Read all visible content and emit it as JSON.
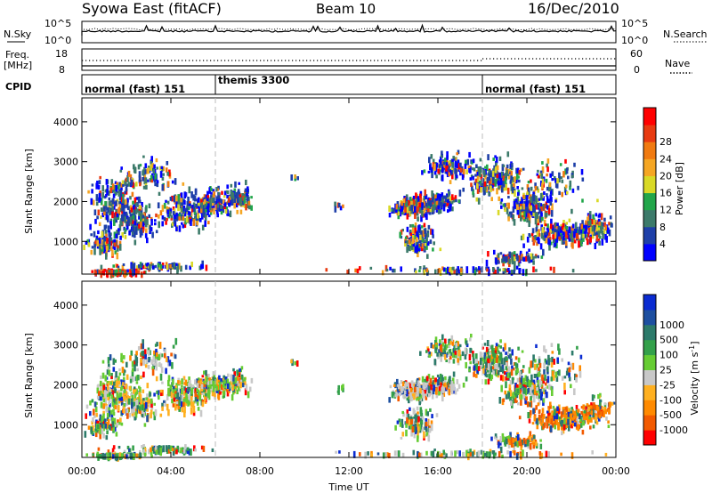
{
  "header": {
    "title": "Syowa East (fitACF)",
    "beam": "Beam 10",
    "date": "16/Dec/2010"
  },
  "noise_panel": {
    "left_label": "N.Sky",
    "right_label": "N.Search",
    "left_ticks": [
      "10^5",
      "10^0"
    ],
    "right_ticks": [
      "10^5",
      "10^0"
    ]
  },
  "freq_panel": {
    "left_label_line1": "Freq.",
    "left_label_line2": "[MHz]",
    "left_ticks": [
      "18",
      "8"
    ],
    "right_ticks": [
      "60",
      "0"
    ],
    "right_label": "Nave"
  },
  "cpid_panel": {
    "label": "CPID",
    "segments": [
      {
        "name": "normal (fast) 151",
        "start_hour": 0,
        "end_hour": 6
      },
      {
        "name": "themis 3300",
        "start_hour": 6,
        "end_hour": 18
      },
      {
        "name": "normal (fast) 151",
        "start_hour": 18,
        "end_hour": 24
      }
    ]
  },
  "chart_data": [
    {
      "type": "heatmap",
      "parameter": "power",
      "ylabel": "Slant Range [km]",
      "xlim": [
        0,
        24
      ],
      "ylim": [
        180,
        4600
      ],
      "yticks": [
        1000,
        2000,
        3000,
        4000
      ],
      "colorbar": {
        "label": "Power [dB]",
        "ticks": [
          "4",
          "8",
          "12",
          "16",
          "20",
          "24",
          "28"
        ],
        "colors": [
          "#0000ff",
          "#1e3fa8",
          "#3c7a6a",
          "#22a64a",
          "#d9d926",
          "#f5a623",
          "#f07a10",
          "#e83a10",
          "#ff0000"
        ]
      }
    },
    {
      "type": "heatmap",
      "parameter": "velocity",
      "ylabel": "Slant Range [km]",
      "xlabel": "Time UT",
      "xlim": [
        0,
        24
      ],
      "ylim": [
        180,
        4600
      ],
      "yticks": [
        1000,
        2000,
        3000,
        4000
      ],
      "xticks": [
        "00:00",
        "04:00",
        "08:00",
        "12:00",
        "16:00",
        "20:00",
        "00:00"
      ],
      "colorbar": {
        "label": "Velocity [m s^-1]",
        "ticks": [
          "1000",
          "500",
          "100",
          "25",
          "-25",
          "-100",
          "-500",
          "-1000"
        ],
        "colors": [
          "#0a2bd1",
          "#1d4fa0",
          "#2c7a6a",
          "#33a04a",
          "#66cc33",
          "#c8c8c8",
          "#ffb020",
          "#ff8a00",
          "#f25a00",
          "#ff0000"
        ]
      }
    }
  ]
}
